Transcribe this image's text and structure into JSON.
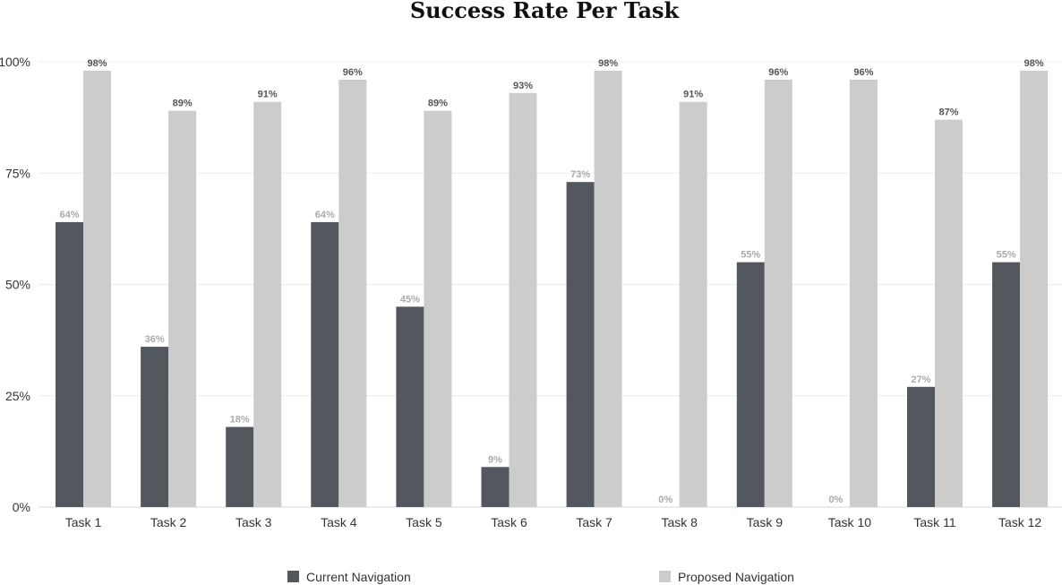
{
  "chart_data": {
    "type": "bar",
    "title": "Success Rate Per Task",
    "categories": [
      "Task 1",
      "Task 2",
      "Task 3",
      "Task 4",
      "Task 5",
      "Task 6",
      "Task 7",
      "Task 8",
      "Task 9",
      "Task 10",
      "Task 11",
      "Task 12"
    ],
    "series": [
      {
        "name": "Current Navigation",
        "color": "#53575e",
        "label_color": "#aaaaaa",
        "values": [
          64,
          36,
          18,
          64,
          45,
          9,
          73,
          0,
          55,
          0,
          27,
          55
        ],
        "labels": [
          "64%",
          "36%",
          "18%",
          "64%",
          "45%",
          "9%",
          "73%",
          "0%",
          "55%",
          "0%",
          "27%",
          "55%"
        ]
      },
      {
        "name": "Proposed Navigation",
        "color": "#cccccc",
        "label_color": "#555555",
        "values": [
          98,
          89,
          91,
          96,
          89,
          93,
          98,
          91,
          96,
          96,
          87,
          98
        ],
        "labels": [
          "98%",
          "89%",
          "91%",
          "96%",
          "89%",
          "93%",
          "98%",
          "91%",
          "96%",
          "96%",
          "87%",
          "98%"
        ]
      }
    ],
    "ylim": [
      0,
      100
    ],
    "yticks": [
      0,
      25,
      50,
      75,
      100
    ],
    "ytick_labels": [
      "0%",
      "25%",
      "50%",
      "75%",
      "100%"
    ],
    "xlabel": "",
    "ylabel": "",
    "grid": true,
    "legend_position": "bottom"
  }
}
